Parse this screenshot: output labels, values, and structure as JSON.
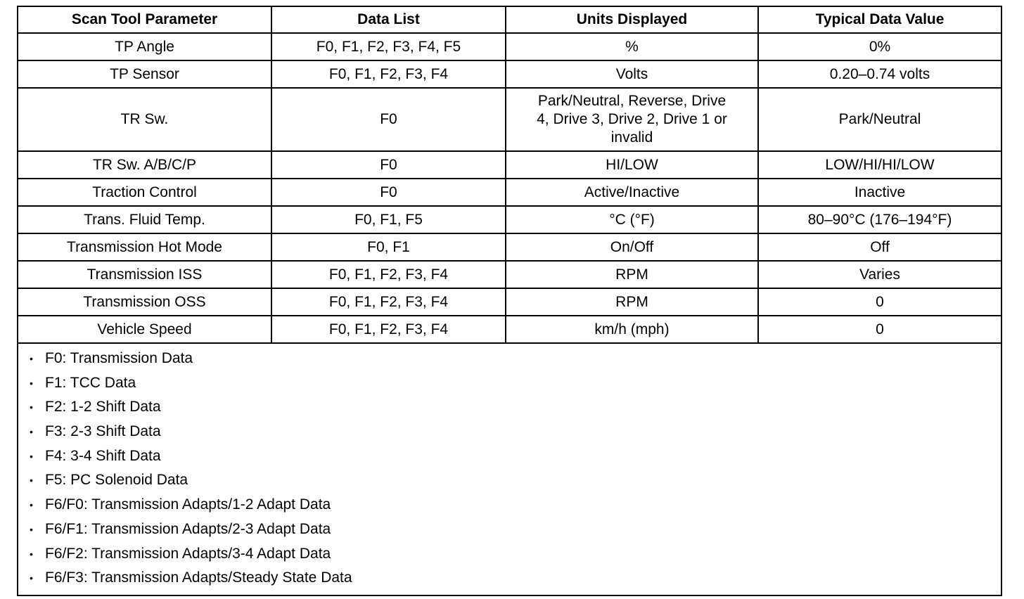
{
  "table": {
    "headers": [
      "Scan Tool Parameter",
      "Data List",
      "Units Displayed",
      "Typical Data Value"
    ],
    "rows": [
      [
        "TP Angle",
        "F0, F1, F2, F3, F4, F5",
        "%",
        "0%"
      ],
      [
        "TP Sensor",
        "F0, F1, F2, F3, F4",
        "Volts",
        "0.20–0.74 volts"
      ],
      [
        "TR Sw.",
        "F0",
        "Park/Neutral, Reverse, Drive 4, Drive 3, Drive 2, Drive 1 or invalid",
        "Park/Neutral"
      ],
      [
        "TR Sw. A/B/C/P",
        "F0",
        "HI/LOW",
        "LOW/HI/HI/LOW"
      ],
      [
        "Traction Control",
        "F0",
        "Active/Inactive",
        "Inactive"
      ],
      [
        "Trans. Fluid Temp.",
        "F0, F1, F5",
        "°C (°F)",
        "80–90°C (176–194°F)"
      ],
      [
        "Transmission Hot Mode",
        "F0, F1",
        "On/Off",
        "Off"
      ],
      [
        "Transmission ISS",
        "F0, F1, F2, F3, F4",
        "RPM",
        "Varies"
      ],
      [
        "Transmission OSS",
        "F0, F1, F2, F3, F4",
        "RPM",
        "0"
      ],
      [
        "Vehicle Speed",
        "F0, F1, F2, F3, F4",
        "km/h (mph)",
        "0"
      ]
    ],
    "notes": [
      "F0: Transmission Data",
      "F1: TCC Data",
      "F2: 1-2 Shift Data",
      "F3: 2-3 Shift Data",
      "F4: 3-4 Shift Data",
      "F5: PC Solenoid Data",
      "F6/F0: Transmission Adapts/1-2 Adapt Data",
      "F6/F1: Transmission Adapts/2-3 Adapt Data",
      "F6/F2: Transmission Adapts/3-4 Adapt Data",
      "F6/F3: Transmission Adapts/Steady State Data"
    ]
  }
}
